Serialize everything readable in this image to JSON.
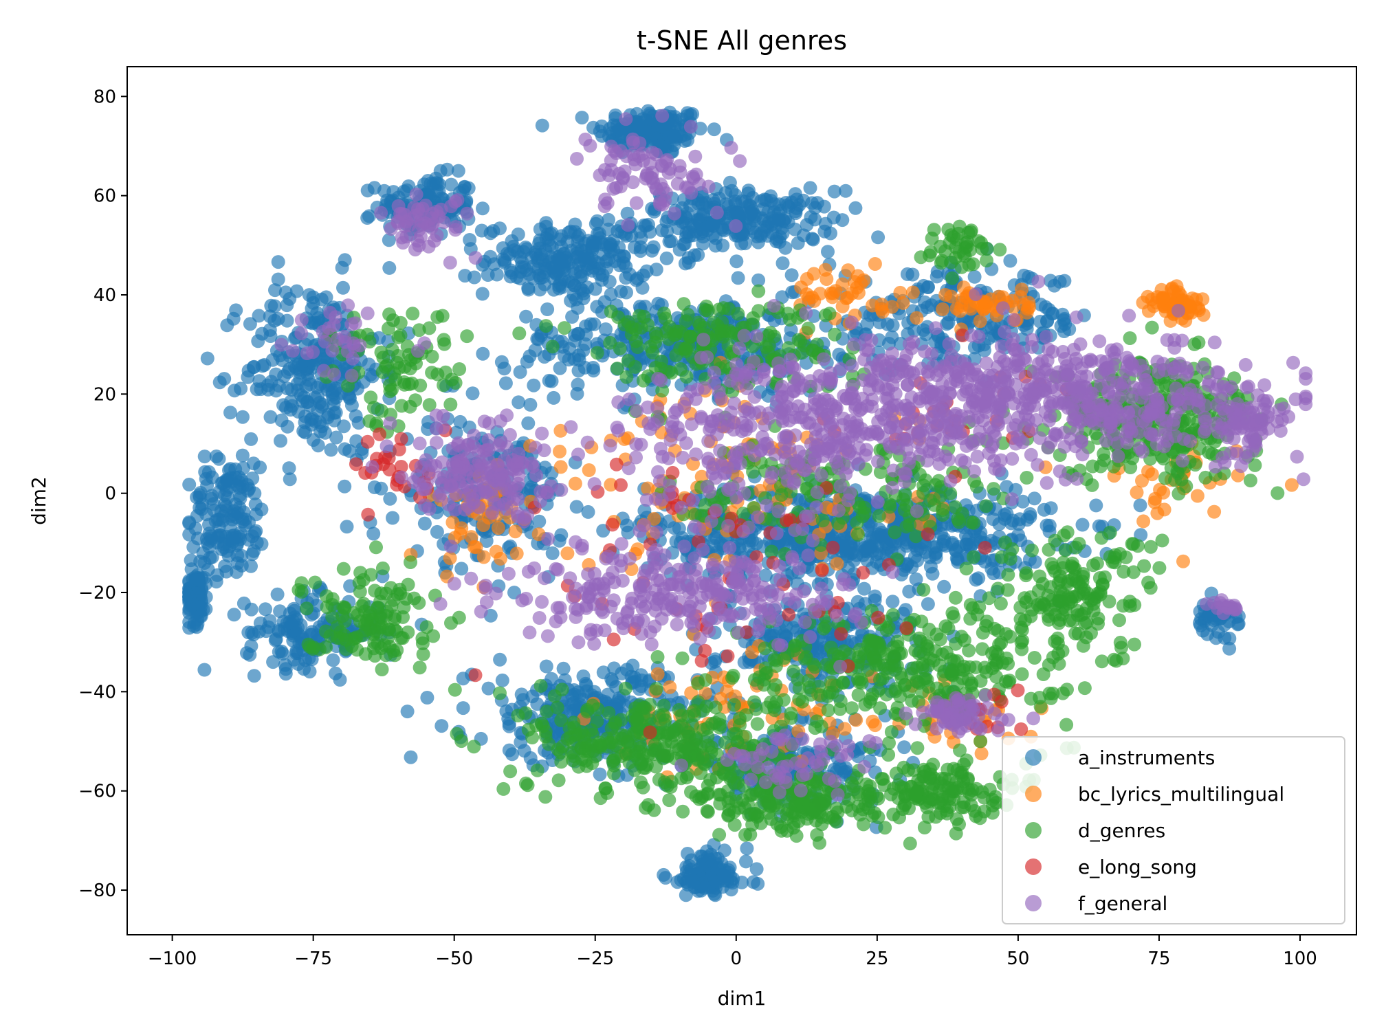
{
  "chart_data": {
    "type": "scatter",
    "title": "t-SNE All genres",
    "xlabel": "dim1",
    "ylabel": "dim2",
    "xlim": [
      -108,
      110
    ],
    "ylim": [
      -89,
      86
    ],
    "xticks": [
      -100,
      -75,
      -50,
      -25,
      0,
      25,
      50,
      75,
      100
    ],
    "yticks": [
      80,
      60,
      40,
      20,
      0,
      -20,
      -40,
      -60,
      -80
    ],
    "xtick_labels": [
      "−100",
      "−75",
      "−50",
      "−25",
      "0",
      "25",
      "50",
      "75",
      "100"
    ],
    "ytick_labels": [
      "80",
      "60",
      "40",
      "20",
      "0",
      "−20",
      "−40",
      "−60",
      "−80"
    ],
    "legend_position": "lower-right",
    "grid": false,
    "series": [
      {
        "name": "a_instruments",
        "color": "#1f77b4",
        "clusters": [
          {
            "center": [
              -15,
              73
            ],
            "spread": [
              8,
              4
            ],
            "count": 160
          },
          {
            "center": [
              -55,
              58
            ],
            "spread": [
              7,
              5
            ],
            "count": 120
          },
          {
            "center": [
              0,
              55
            ],
            "spread": [
              15,
              5
            ],
            "count": 240
          },
          {
            "center": [
              -30,
              47
            ],
            "spread": [
              12,
              6
            ],
            "count": 220
          },
          {
            "center": [
              -75,
              25
            ],
            "spread": [
              10,
              15
            ],
            "count": 260
          },
          {
            "center": [
              -90,
              -5
            ],
            "spread": [
              6,
              10
            ],
            "count": 140
          },
          {
            "center": [
              -96,
              -20
            ],
            "spread": [
              2,
              5
            ],
            "count": 90
          },
          {
            "center": [
              -75,
              -28
            ],
            "spread": [
              10,
              6
            ],
            "count": 150
          },
          {
            "center": [
              20,
              -8
            ],
            "spread": [
              30,
              8
            ],
            "count": 650
          },
          {
            "center": [
              -10,
              30
            ],
            "spread": [
              25,
              8
            ],
            "count": 320
          },
          {
            "center": [
              -25,
              -45
            ],
            "spread": [
              18,
              8
            ],
            "count": 280
          },
          {
            "center": [
              -5,
              -77
            ],
            "spread": [
              6,
              4
            ],
            "count": 110
          },
          {
            "center": [
              10,
              -55
            ],
            "spread": [
              15,
              6
            ],
            "count": 160
          },
          {
            "center": [
              40,
              35
            ],
            "spread": [
              20,
              8
            ],
            "count": 200
          },
          {
            "center": [
              -45,
              0
            ],
            "spread": [
              12,
              12
            ],
            "count": 200
          },
          {
            "center": [
              85,
              -25
            ],
            "spread": [
              4,
              3
            ],
            "count": 40
          },
          {
            "center": [
              15,
              -30
            ],
            "spread": [
              15,
              8
            ],
            "count": 220
          }
        ]
      },
      {
        "name": "bc_lyrics_multilingual",
        "color": "#ff7f0e",
        "clusters": [
          {
            "center": [
              78,
              38
            ],
            "spread": [
              4,
              3
            ],
            "count": 60
          },
          {
            "center": [
              45,
              38
            ],
            "spread": [
              6,
              3
            ],
            "count": 45
          },
          {
            "center": [
              0,
              2
            ],
            "spread": [
              30,
              15
            ],
            "count": 120
          },
          {
            "center": [
              -45,
              -5
            ],
            "spread": [
              8,
              10
            ],
            "count": 40
          },
          {
            "center": [
              0,
              -45
            ],
            "spread": [
              20,
              10
            ],
            "count": 70
          },
          {
            "center": [
              40,
              -45
            ],
            "spread": [
              8,
              5
            ],
            "count": 35
          },
          {
            "center": [
              75,
              0
            ],
            "spread": [
              12,
              8
            ],
            "count": 30
          },
          {
            "center": [
              20,
              40
            ],
            "spread": [
              10,
              5
            ],
            "count": 40
          }
        ]
      },
      {
        "name": "d_genres",
        "color": "#2ca02c",
        "clusters": [
          {
            "center": [
              75,
              15
            ],
            "spread": [
              15,
              10
            ],
            "count": 300
          },
          {
            "center": [
              30,
              -35
            ],
            "spread": [
              25,
              10
            ],
            "count": 320
          },
          {
            "center": [
              -15,
              -50
            ],
            "spread": [
              18,
              8
            ],
            "count": 280
          },
          {
            "center": [
              10,
              -62
            ],
            "spread": [
              15,
              6
            ],
            "count": 200
          },
          {
            "center": [
              35,
              -60
            ],
            "spread": [
              10,
              5
            ],
            "count": 140
          },
          {
            "center": [
              -65,
              -25
            ],
            "spread": [
              10,
              8
            ],
            "count": 120
          },
          {
            "center": [
              -5,
              30
            ],
            "spread": [
              20,
              8
            ],
            "count": 180
          },
          {
            "center": [
              40,
              50
            ],
            "spread": [
              6,
              4
            ],
            "count": 40
          },
          {
            "center": [
              60,
              -20
            ],
            "spread": [
              12,
              10
            ],
            "count": 150
          },
          {
            "center": [
              -60,
              25
            ],
            "spread": [
              10,
              10
            ],
            "count": 80
          },
          {
            "center": [
              20,
              0
            ],
            "spread": [
              25,
              10
            ],
            "count": 160
          }
        ]
      },
      {
        "name": "e_long_song",
        "color": "#d62728",
        "clusters": [
          {
            "center": [
              -60,
              5
            ],
            "spread": [
              6,
              6
            ],
            "count": 25
          },
          {
            "center": [
              0,
              -15
            ],
            "spread": [
              35,
              20
            ],
            "count": 60
          },
          {
            "center": [
              40,
              15
            ],
            "spread": [
              20,
              10
            ],
            "count": 25
          },
          {
            "center": [
              45,
              -45
            ],
            "spread": [
              6,
              5
            ],
            "count": 10
          }
        ]
      },
      {
        "name": "f_general",
        "color": "#9467bd",
        "clusters": [
          {
            "center": [
              60,
              20
            ],
            "spread": [
              25,
              10
            ],
            "count": 420
          },
          {
            "center": [
              25,
              15
            ],
            "spread": [
              25,
              12
            ],
            "count": 380
          },
          {
            "center": [
              -45,
              5
            ],
            "spread": [
              10,
              8
            ],
            "count": 160
          },
          {
            "center": [
              -10,
              -20
            ],
            "spread": [
              25,
              8
            ],
            "count": 260
          },
          {
            "center": [
              -15,
              65
            ],
            "spread": [
              12,
              8
            ],
            "count": 80
          },
          {
            "center": [
              -55,
              55
            ],
            "spread": [
              6,
              5
            ],
            "count": 50
          },
          {
            "center": [
              40,
              -45
            ],
            "spread": [
              8,
              3
            ],
            "count": 60
          },
          {
            "center": [
              0,
              10
            ],
            "spread": [
              20,
              15
            ],
            "count": 150
          },
          {
            "center": [
              -70,
              30
            ],
            "spread": [
              8,
              6
            ],
            "count": 30
          },
          {
            "center": [
              10,
              -55
            ],
            "spread": [
              12,
              6
            ],
            "count": 50
          },
          {
            "center": [
              90,
              15
            ],
            "spread": [
              6,
              6
            ],
            "count": 80
          },
          {
            "center": [
              87,
              -23
            ],
            "spread": [
              3,
              2
            ],
            "count": 15
          }
        ]
      }
    ]
  }
}
